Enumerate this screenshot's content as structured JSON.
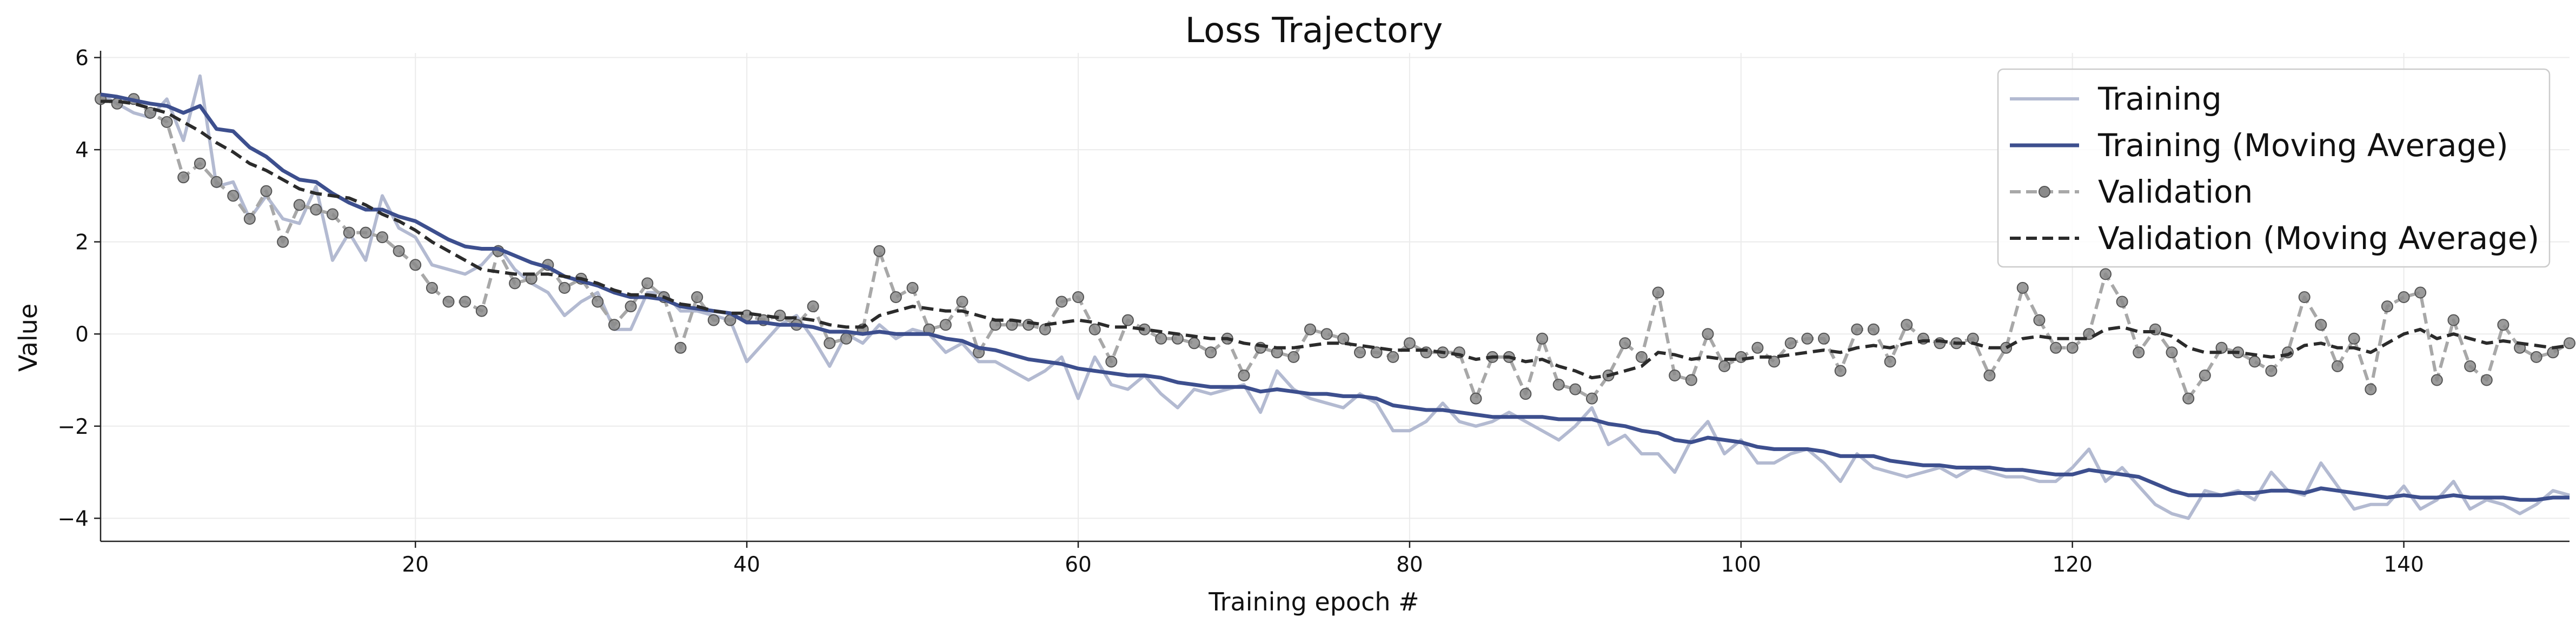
{
  "chart_data": {
    "type": "line",
    "title": "Loss Trajectory",
    "xlabel": "Training epoch #",
    "ylabel": "Value",
    "xlim": [
      1,
      150
    ],
    "ylim": [
      -4.5,
      6.1
    ],
    "xticks": [
      20,
      40,
      60,
      80,
      100,
      120,
      140
    ],
    "yticks": [
      -4,
      -2,
      0,
      2,
      4,
      6
    ],
    "grid": true,
    "legend_position": "top-right",
    "x": [
      1,
      2,
      3,
      4,
      5,
      6,
      7,
      8,
      9,
      10,
      11,
      12,
      13,
      14,
      15,
      16,
      17,
      18,
      19,
      20,
      21,
      22,
      23,
      24,
      25,
      26,
      27,
      28,
      29,
      30,
      31,
      32,
      33,
      34,
      35,
      36,
      37,
      38,
      39,
      40,
      41,
      42,
      43,
      44,
      45,
      46,
      47,
      48,
      49,
      50,
      51,
      52,
      53,
      54,
      55,
      56,
      57,
      58,
      59,
      60,
      61,
      62,
      63,
      64,
      65,
      66,
      67,
      68,
      69,
      70,
      71,
      72,
      73,
      74,
      75,
      76,
      77,
      78,
      79,
      80,
      81,
      82,
      83,
      84,
      85,
      86,
      87,
      88,
      89,
      90,
      91,
      92,
      93,
      94,
      95,
      96,
      97,
      98,
      99,
      100,
      101,
      102,
      103,
      104,
      105,
      106,
      107,
      108,
      109,
      110,
      111,
      112,
      113,
      114,
      115,
      116,
      117,
      118,
      119,
      120,
      121,
      122,
      123,
      124,
      125,
      126,
      127,
      128,
      129,
      130,
      131,
      132,
      133,
      134,
      135,
      136,
      137,
      138,
      139,
      140,
      141,
      142,
      143,
      144,
      145,
      146,
      147,
      148,
      149,
      150
    ],
    "series": [
      {
        "name": "Training",
        "color": "#b3bad1",
        "style": "solid",
        "values": [
          5.2,
          5.0,
          4.8,
          4.7,
          5.1,
          4.2,
          5.6,
          3.2,
          3.3,
          2.5,
          3.0,
          2.5,
          2.4,
          3.2,
          1.6,
          2.2,
          1.6,
          3.0,
          2.3,
          2.1,
          1.5,
          1.4,
          1.3,
          1.5,
          1.9,
          1.4,
          1.1,
          0.9,
          0.4,
          0.7,
          0.9,
          0.1,
          0.1,
          0.9,
          0.9,
          0.5,
          0.5,
          0.4,
          0.3,
          -0.6,
          -0.2,
          0.2,
          0.4,
          -0.1,
          -0.7,
          0.0,
          -0.2,
          0.2,
          -0.1,
          0.1,
          0.0,
          -0.4,
          -0.2,
          -0.6,
          -0.6,
          -0.8,
          -1.0,
          -0.8,
          -0.5,
          -1.4,
          -0.5,
          -1.1,
          -1.2,
          -0.9,
          -1.3,
          -1.6,
          -1.2,
          -1.3,
          -1.2,
          -1.1,
          -1.7,
          -0.8,
          -1.2,
          -1.4,
          -1.5,
          -1.6,
          -1.3,
          -1.5,
          -2.1,
          -2.1,
          -1.9,
          -1.5,
          -1.9,
          -2.0,
          -1.9,
          -1.7,
          -1.9,
          -2.1,
          -2.3,
          -2.0,
          -1.6,
          -2.4,
          -2.2,
          -2.6,
          -2.6,
          -3.0,
          -2.3,
          -1.9,
          -2.6,
          -2.3,
          -2.8,
          -2.8,
          -2.6,
          -2.5,
          -2.8,
          -3.2,
          -2.6,
          -2.9,
          -3.0,
          -3.1,
          -3.0,
          -2.9,
          -3.1,
          -2.9,
          -3.0,
          -3.1,
          -3.1,
          -3.2,
          -3.2,
          -2.9,
          -2.5,
          -3.2,
          -2.9,
          -3.3,
          -3.7,
          -3.9,
          -4.0,
          -3.4,
          -3.5,
          -3.4,
          -3.6,
          -3.0,
          -3.4,
          -3.5,
          -2.8,
          -3.3,
          -3.8,
          -3.7,
          -3.7,
          -3.3,
          -3.8,
          -3.6,
          -3.2,
          -3.8,
          -3.6,
          -3.7,
          -3.9,
          -3.7,
          -3.4,
          -3.5
        ]
      },
      {
        "name": "Training (Moving Average)",
        "color": "#3d4f8e",
        "style": "solid",
        "values": [
          5.2,
          5.15,
          5.07,
          5.0,
          4.95,
          4.8,
          4.95,
          4.45,
          4.4,
          4.05,
          3.85,
          3.55,
          3.35,
          3.3,
          3.05,
          2.85,
          2.7,
          2.7,
          2.55,
          2.45,
          2.25,
          2.05,
          1.9,
          1.85,
          1.85,
          1.7,
          1.55,
          1.45,
          1.25,
          1.15,
          1.05,
          0.9,
          0.8,
          0.8,
          0.75,
          0.6,
          0.55,
          0.5,
          0.45,
          0.25,
          0.25,
          0.2,
          0.2,
          0.15,
          0.05,
          0.05,
          0.0,
          0.05,
          0.0,
          0.0,
          0.0,
          -0.1,
          -0.15,
          -0.3,
          -0.35,
          -0.45,
          -0.55,
          -0.6,
          -0.65,
          -0.75,
          -0.8,
          -0.85,
          -0.9,
          -0.9,
          -0.95,
          -1.05,
          -1.1,
          -1.15,
          -1.15,
          -1.15,
          -1.25,
          -1.2,
          -1.25,
          -1.3,
          -1.3,
          -1.35,
          -1.35,
          -1.4,
          -1.55,
          -1.6,
          -1.65,
          -1.65,
          -1.7,
          -1.75,
          -1.8,
          -1.8,
          -1.8,
          -1.8,
          -1.85,
          -1.85,
          -1.85,
          -1.95,
          -2.0,
          -2.1,
          -2.15,
          -2.3,
          -2.35,
          -2.25,
          -2.3,
          -2.35,
          -2.45,
          -2.5,
          -2.5,
          -2.5,
          -2.55,
          -2.65,
          -2.65,
          -2.65,
          -2.75,
          -2.8,
          -2.85,
          -2.85,
          -2.9,
          -2.9,
          -2.9,
          -2.95,
          -2.95,
          -3.0,
          -3.05,
          -3.05,
          -2.95,
          -3.0,
          -3.05,
          -3.1,
          -3.25,
          -3.4,
          -3.5,
          -3.5,
          -3.5,
          -3.45,
          -3.45,
          -3.4,
          -3.4,
          -3.45,
          -3.35,
          -3.4,
          -3.45,
          -3.5,
          -3.55,
          -3.5,
          -3.55,
          -3.55,
          -3.5,
          -3.55,
          -3.55,
          -3.55,
          -3.6,
          -3.6,
          -3.55,
          -3.55
        ]
      },
      {
        "name": "Validation",
        "color": "#a8a8a8",
        "style": "dashed",
        "marker": "circle",
        "values": [
          5.1,
          5.0,
          5.1,
          4.8,
          4.6,
          3.4,
          3.7,
          3.3,
          3.0,
          2.5,
          3.1,
          2.0,
          2.8,
          2.7,
          2.6,
          2.2,
          2.2,
          2.1,
          1.8,
          1.5,
          1.0,
          0.7,
          0.7,
          0.5,
          1.8,
          1.1,
          1.2,
          1.5,
          1.0,
          1.2,
          0.7,
          0.2,
          0.6,
          1.1,
          0.8,
          -0.3,
          0.8,
          0.3,
          0.3,
          0.4,
          0.3,
          0.4,
          0.2,
          0.6,
          -0.2,
          -0.1,
          0.1,
          1.8,
          0.8,
          1.0,
          0.1,
          0.2,
          0.7,
          -0.4,
          0.2,
          0.2,
          0.2,
          0.1,
          0.7,
          0.8,
          0.1,
          -0.6,
          0.3,
          0.1,
          -0.1,
          -0.1,
          -0.2,
          -0.4,
          -0.1,
          -0.9,
          -0.3,
          -0.4,
          -0.5,
          0.1,
          0.0,
          -0.1,
          -0.4,
          -0.4,
          -0.5,
          -0.2,
          -0.4,
          -0.4,
          -0.4,
          -1.4,
          -0.5,
          -0.5,
          -1.3,
          -0.1,
          -1.1,
          -1.2,
          -1.4,
          -0.9,
          -0.2,
          -0.5,
          0.9,
          -0.9,
          -1.0,
          0.0,
          -0.7,
          -0.5,
          -0.3,
          -0.6,
          -0.2,
          -0.1,
          -0.1,
          -0.8,
          0.1,
          0.1,
          -0.6,
          0.2,
          -0.1,
          -0.2,
          -0.2,
          -0.1,
          -0.9,
          -0.3,
          1.0,
          0.3,
          -0.3,
          -0.3,
          0.0,
          1.3,
          0.7,
          -0.4,
          0.1,
          -0.4,
          -1.4,
          -0.9,
          -0.3,
          -0.4,
          -0.6,
          -0.8,
          -0.4,
          0.8,
          0.2,
          -0.7,
          -0.1,
          -1.2,
          0.6,
          0.8,
          0.9,
          -1.0,
          0.3,
          -0.7,
          -1.0,
          0.2,
          -0.3,
          -0.5,
          -0.4,
          -0.2
        ]
      },
      {
        "name": "Validation (Moving Average)",
        "color": "#2b2b2b",
        "style": "dashed",
        "values": [
          5.05,
          5.05,
          5.0,
          4.9,
          4.8,
          4.6,
          4.4,
          4.15,
          3.95,
          3.7,
          3.55,
          3.35,
          3.15,
          3.05,
          3.0,
          2.95,
          2.8,
          2.6,
          2.45,
          2.25,
          2.0,
          1.8,
          1.6,
          1.4,
          1.35,
          1.3,
          1.3,
          1.3,
          1.25,
          1.2,
          1.1,
          0.95,
          0.85,
          0.85,
          0.8,
          0.65,
          0.6,
          0.5,
          0.45,
          0.45,
          0.4,
          0.35,
          0.35,
          0.3,
          0.2,
          0.15,
          0.15,
          0.4,
          0.5,
          0.6,
          0.55,
          0.5,
          0.5,
          0.4,
          0.3,
          0.3,
          0.25,
          0.2,
          0.25,
          0.3,
          0.25,
          0.15,
          0.15,
          0.1,
          0.05,
          0.0,
          -0.05,
          -0.1,
          -0.1,
          -0.2,
          -0.25,
          -0.3,
          -0.3,
          -0.25,
          -0.2,
          -0.2,
          -0.25,
          -0.3,
          -0.35,
          -0.35,
          -0.35,
          -0.4,
          -0.45,
          -0.55,
          -0.5,
          -0.5,
          -0.6,
          -0.55,
          -0.7,
          -0.8,
          -0.95,
          -0.9,
          -0.8,
          -0.7,
          -0.4,
          -0.45,
          -0.55,
          -0.5,
          -0.55,
          -0.55,
          -0.5,
          -0.5,
          -0.45,
          -0.4,
          -0.35,
          -0.4,
          -0.3,
          -0.25,
          -0.3,
          -0.2,
          -0.15,
          -0.15,
          -0.2,
          -0.2,
          -0.3,
          -0.3,
          -0.1,
          -0.05,
          -0.1,
          -0.1,
          -0.1,
          0.1,
          0.15,
          0.05,
          0.05,
          -0.05,
          -0.3,
          -0.4,
          -0.4,
          -0.4,
          -0.45,
          -0.5,
          -0.45,
          -0.25,
          -0.2,
          -0.3,
          -0.3,
          -0.4,
          -0.2,
          0.0,
          0.1,
          -0.1,
          0.0,
          -0.1,
          -0.2,
          -0.15,
          -0.2,
          -0.25,
          -0.3,
          -0.25
        ]
      }
    ]
  }
}
